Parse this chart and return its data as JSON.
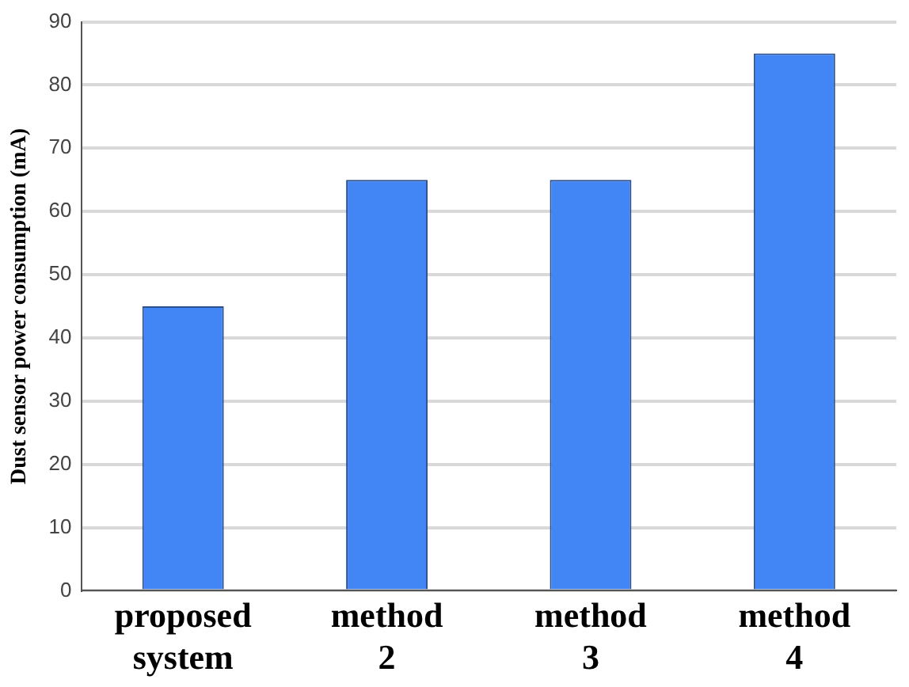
{
  "chart_data": {
    "type": "bar",
    "ylabel": "Dust sensor power consumption (mA)",
    "categories": [
      "proposed system",
      "method 2",
      "method 3",
      "method 4"
    ],
    "values": [
      45,
      65,
      65,
      85
    ],
    "color": "#4285f4",
    "ylim": [
      0,
      90
    ],
    "yticks": [
      0,
      10,
      20,
      30,
      40,
      50,
      60,
      70,
      80,
      90
    ],
    "grid": "y"
  }
}
